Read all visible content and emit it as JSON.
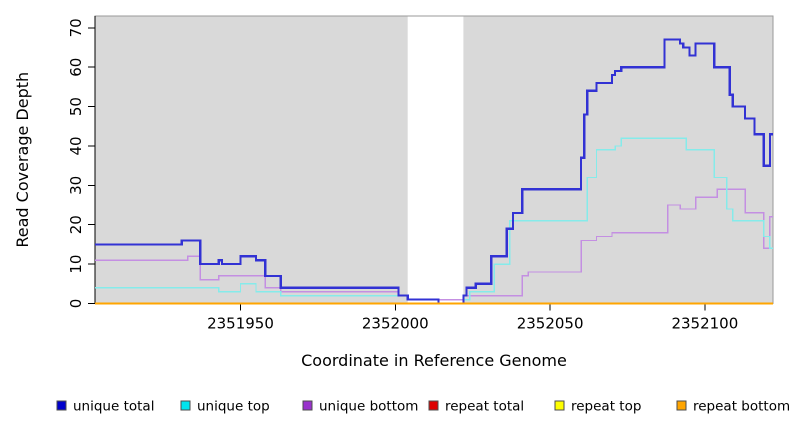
{
  "chart_data": {
    "type": "line",
    "subtype": "step-coverage-plot",
    "title": "",
    "xlabel": "Coordinate in Reference Genome",
    "ylabel": "Read Coverage Depth",
    "xlim": [
      2351903,
      2352122
    ],
    "ylim": [
      0,
      73
    ],
    "x_ticks": [
      2351950,
      2352000,
      2352050,
      2352100
    ],
    "y_ticks": [
      0,
      10,
      20,
      30,
      40,
      50,
      60,
      70
    ],
    "grid": false,
    "legend_position": "bottom",
    "page_background": "#ffffff",
    "plot_background": "#d9d9d9",
    "axis_color": "#000000",
    "panel_border_color": "#999999",
    "masked_region": {
      "x_start": 2352004,
      "x_end": 2352022,
      "color": "#ffffff"
    },
    "series": [
      {
        "name": "unique total",
        "line_color": "#3232d4",
        "legend_color": "#0000cc",
        "line_width": 2.2,
        "draw_order": 5,
        "points": [
          [
            2351903,
            15
          ],
          [
            2351931,
            16
          ],
          [
            2351937,
            10
          ],
          [
            2351943,
            11
          ],
          [
            2351944,
            10
          ],
          [
            2351950,
            12
          ],
          [
            2351955,
            11
          ],
          [
            2351958,
            7
          ],
          [
            2351963,
            4
          ],
          [
            2352001,
            2
          ],
          [
            2352004,
            1
          ],
          [
            2352014,
            0
          ],
          [
            2352022,
            2
          ],
          [
            2352023,
            4
          ],
          [
            2352026,
            5
          ],
          [
            2352031,
            12
          ],
          [
            2352036,
            19
          ],
          [
            2352038,
            23
          ],
          [
            2352041,
            29
          ],
          [
            2352060,
            37
          ],
          [
            2352061,
            48
          ],
          [
            2352062,
            54
          ],
          [
            2352065,
            56
          ],
          [
            2352070,
            58
          ],
          [
            2352071,
            59
          ],
          [
            2352073,
            60
          ],
          [
            2352087,
            67
          ],
          [
            2352092,
            66
          ],
          [
            2352093,
            65
          ],
          [
            2352095,
            63
          ],
          [
            2352097,
            66
          ],
          [
            2352103,
            60
          ],
          [
            2352108,
            53
          ],
          [
            2352109,
            50
          ],
          [
            2352113,
            47
          ],
          [
            2352116,
            43
          ],
          [
            2352119,
            35
          ],
          [
            2352121,
            43
          ],
          [
            2352122,
            43
          ]
        ]
      },
      {
        "name": "unique top",
        "line_color": "#85ebea",
        "legend_color": "#00e5ee",
        "line_width": 1.4,
        "draw_order": 4,
        "points": [
          [
            2351903,
            4
          ],
          [
            2351943,
            3
          ],
          [
            2351950,
            5
          ],
          [
            2351955,
            3
          ],
          [
            2351963,
            2
          ],
          [
            2352004,
            1
          ],
          [
            2352014,
            0
          ],
          [
            2352022,
            1
          ],
          [
            2352024,
            3
          ],
          [
            2352032,
            10
          ],
          [
            2352037,
            21
          ],
          [
            2352062,
            32
          ],
          [
            2352065,
            39
          ],
          [
            2352071,
            40
          ],
          [
            2352073,
            42
          ],
          [
            2352094,
            39
          ],
          [
            2352103,
            32
          ],
          [
            2352107,
            24
          ],
          [
            2352109,
            21
          ],
          [
            2352119,
            17
          ],
          [
            2352121,
            14
          ],
          [
            2352122,
            14
          ]
        ]
      },
      {
        "name": "unique bottom",
        "line_color": "#c48fe2",
        "legend_color": "#9932cc",
        "line_width": 1.4,
        "draw_order": 3,
        "points": [
          [
            2351903,
            11
          ],
          [
            2351933,
            12
          ],
          [
            2351937,
            6
          ],
          [
            2351943,
            7
          ],
          [
            2351958,
            4
          ],
          [
            2351963,
            3
          ],
          [
            2352001,
            2
          ],
          [
            2352004,
            1
          ],
          [
            2352022,
            2
          ],
          [
            2352041,
            7
          ],
          [
            2352043,
            8
          ],
          [
            2352060,
            16
          ],
          [
            2352065,
            17
          ],
          [
            2352070,
            18
          ],
          [
            2352088,
            25
          ],
          [
            2352092,
            24
          ],
          [
            2352097,
            27
          ],
          [
            2352104,
            29
          ],
          [
            2352113,
            23
          ],
          [
            2352119,
            14
          ],
          [
            2352121,
            22
          ],
          [
            2352122,
            22
          ]
        ]
      },
      {
        "name": "repeat total",
        "line_color": "#dd0000",
        "legend_color": "#dd0000",
        "line_width": 1.4,
        "draw_order": 1,
        "points": [
          [
            2351903,
            0
          ],
          [
            2352122,
            0
          ]
        ]
      },
      {
        "name": "repeat top",
        "line_color": "#ffff00",
        "legend_color": "#ffff00",
        "line_width": 1.4,
        "draw_order": 2,
        "points": [
          [
            2351903,
            0
          ],
          [
            2352122,
            0
          ]
        ]
      },
      {
        "name": "repeat bottom",
        "line_color": "#ffa500",
        "legend_color": "#ffa500",
        "line_width": 2.0,
        "draw_order": 6,
        "points": [
          [
            2351903,
            0
          ],
          [
            2352122,
            0
          ]
        ]
      }
    ]
  }
}
